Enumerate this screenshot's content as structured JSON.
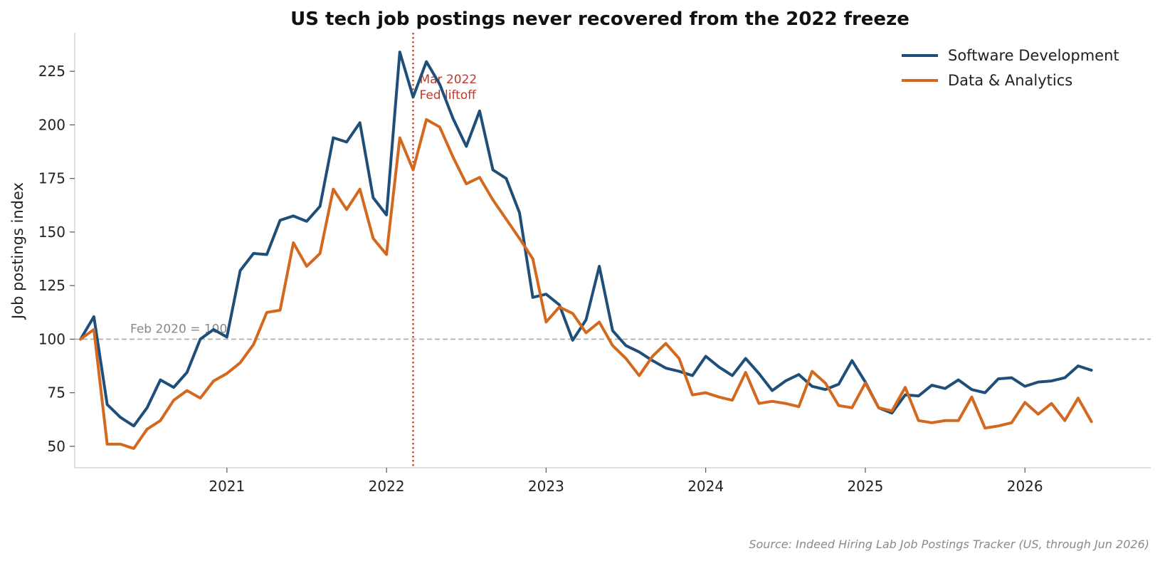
{
  "chart_data": {
    "type": "line",
    "title": "US tech job postings never recovered from the 2022 freeze",
    "ylabel": "Job postings index",
    "xlabel": "",
    "ylim": [
      40,
      243
    ],
    "xlim": [
      "2020-01-18",
      "2026-10-15"
    ],
    "yticks": [
      50,
      75,
      100,
      125,
      150,
      175,
      200,
      225
    ],
    "xticks": [
      "2021",
      "2022",
      "2023",
      "2024",
      "2025",
      "2026"
    ],
    "x_start": "2020-02",
    "x_end": "2026-06",
    "x_frequency": "monthly",
    "series": [
      {
        "name": "Software Development",
        "color": "#1f4e79",
        "values": [
          100,
          110.5,
          69.5,
          63.5,
          59.5,
          68,
          81,
          77.5,
          84.5,
          100,
          104.5,
          101,
          132,
          140,
          139.5,
          155.5,
          157.5,
          155,
          162,
          194,
          192,
          201,
          166,
          158,
          234,
          213,
          229.5,
          219,
          203,
          190,
          206.5,
          179,
          175,
          159,
          119.5,
          121,
          116,
          99.5,
          109,
          134,
          104,
          97,
          94,
          90,
          86.5,
          85,
          83,
          92,
          87,
          83,
          91,
          84,
          76,
          80.5,
          83.5,
          78,
          76.5,
          79,
          90,
          80,
          68,
          65.5,
          74,
          73.5,
          78.5,
          77,
          81,
          76.5,
          75,
          81.5,
          82,
          78,
          80,
          80.5,
          82,
          87.5,
          85.5
        ]
      },
      {
        "name": "Data & Analytics",
        "color": "#d2691e",
        "values": [
          100,
          104.5,
          51,
          51,
          49,
          58,
          62,
          71.5,
          76,
          72.5,
          80.5,
          84,
          89,
          97.5,
          112.5,
          113.5,
          145,
          134,
          140,
          170,
          160.5,
          170,
          147,
          139.5,
          194,
          179,
          202.5,
          199,
          185,
          172.5,
          175.5,
          165,
          156,
          147,
          137.5,
          108,
          115,
          112,
          103,
          108,
          97,
          91,
          83,
          92,
          98,
          91,
          74,
          75,
          73,
          71.5,
          84.5,
          70,
          71,
          70,
          68.5,
          85,
          79.5,
          69,
          68,
          79.5,
          68,
          66.5,
          77.5,
          62,
          61,
          62,
          62,
          73,
          58.5,
          59.5,
          61,
          70.5,
          65,
          70,
          62,
          72.5,
          61.5
        ]
      }
    ],
    "legend": "top-right",
    "grid": false,
    "reference_line": {
      "y": 100,
      "label": "Feb 2020 = 100"
    },
    "event_line": {
      "x": "2022-03",
      "label_lines": [
        "Mar 2022",
        "Fed liftoff"
      ]
    },
    "source": "Source: Indeed Hiring Lab Job Postings Tracker (US, through Jun 2026)"
  }
}
